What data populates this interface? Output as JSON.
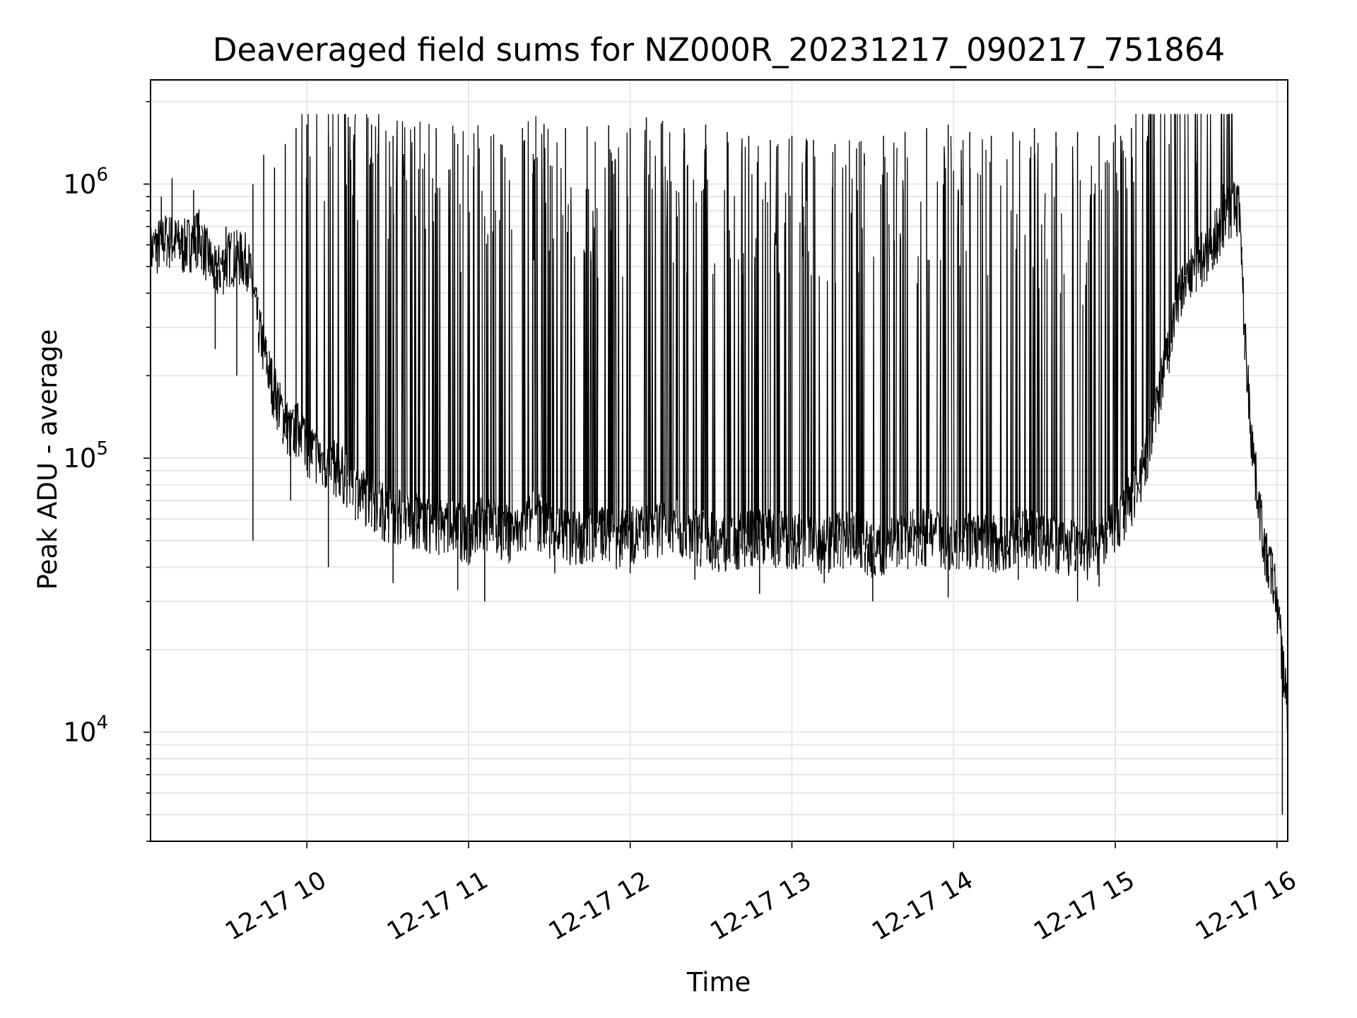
{
  "chart_data": {
    "type": "line",
    "title": "Deaveraged field sums for NZ000R_20231217_090217_751864",
    "xlabel": "Time",
    "ylabel": "Peak ADU - average",
    "yscale": "log",
    "ylim": [
      4000,
      2400000
    ],
    "xlim": [
      "2023-12-17 09:02",
      "2023-12-17 16:04"
    ],
    "grid": true,
    "line_color": "#000000",
    "grid_color": "#e6e6e6",
    "x_ticks": [
      "12-17 10",
      "12-17 11",
      "12-17 12",
      "12-17 13",
      "12-17 14",
      "12-17 15",
      "12-17 16"
    ],
    "y_ticks": [
      {
        "base": "10",
        "exp": "4"
      },
      {
        "base": "10",
        "exp": "5"
      },
      {
        "base": "10",
        "exp": "6"
      }
    ],
    "series": [
      {
        "x": [
          "09:02",
          "09:08",
          "09:14",
          "09:20",
          "09:26",
          "09:32",
          "09:38",
          "09:42",
          "09:46",
          "09:50",
          "09:54",
          "09:58",
          "10:00",
          "10:06",
          "10:12",
          "10:18",
          "10:24",
          "10:30",
          "10:36",
          "10:42",
          "10:48",
          "10:54",
          "11:00",
          "11:06",
          "11:12",
          "11:18",
          "11:24",
          "11:30",
          "11:36",
          "11:42",
          "11:48",
          "11:54",
          "12:00",
          "12:06",
          "12:12",
          "12:18",
          "12:24",
          "12:30",
          "12:36",
          "12:42",
          "12:48",
          "12:54",
          "13:00",
          "13:06",
          "13:12",
          "13:18",
          "13:24",
          "13:30",
          "13:36",
          "13:42",
          "13:48",
          "13:54",
          "14:00",
          "14:06",
          "14:12",
          "14:18",
          "14:24",
          "14:30",
          "14:36",
          "14:42",
          "14:48",
          "14:54",
          "15:00",
          "15:06",
          "15:12",
          "15:18",
          "15:24",
          "15:30",
          "15:36",
          "15:42",
          "15:46",
          "15:48",
          "15:50",
          "15:52",
          "15:54",
          "15:56",
          "15:58",
          "16:00",
          "16:02",
          "16:04"
        ],
        "y": [
          560000,
          620000,
          580000,
          640000,
          460000,
          540000,
          520000,
          300000,
          200000,
          150000,
          120000,
          130000,
          110000,
          95000,
          90000,
          75000,
          70000,
          62000,
          60000,
          58000,
          55000,
          56000,
          52000,
          58000,
          54000,
          52000,
          60000,
          55000,
          52000,
          50000,
          54000,
          50000,
          52000,
          54000,
          56000,
          55000,
          52000,
          50000,
          48000,
          50000,
          52000,
          51000,
          50000,
          50000,
          48000,
          50000,
          50000,
          45000,
          48000,
          50000,
          52000,
          50000,
          50000,
          50000,
          49000,
          48000,
          52000,
          50000,
          48000,
          48000,
          45000,
          48000,
          55000,
          70000,
          100000,
          200000,
          400000,
          500000,
          600000,
          800000,
          820000,
          280000,
          140000,
          85000,
          60000,
          42000,
          38000,
          30000,
          18000,
          12000
        ],
        "spikes": [
          {
            "x": "09:06",
            "y": 900000
          },
          {
            "x": "09:10",
            "y": 1050000
          },
          {
            "x": "09:18",
            "y": 950000
          },
          {
            "x": "09:30",
            "y": 700000
          },
          {
            "x": "09:40",
            "y": 1000000
          },
          {
            "x": "09:44",
            "y": 1280000
          },
          {
            "x": "09:48",
            "y": 1150000
          },
          {
            "x": "09:52",
            "y": 1400000
          },
          {
            "x": "09:56",
            "y": 1600000
          },
          {
            "x": "10:00",
            "y": 1650000
          },
          {
            "x": "10:08",
            "y": 1550000
          },
          {
            "x": "10:16",
            "y": 1620000
          },
          {
            "x": "10:24",
            "y": 1650000
          },
          {
            "x": "10:32",
            "y": 1500000
          },
          {
            "x": "10:40",
            "y": 1620000
          },
          {
            "x": "10:48",
            "y": 1600000
          },
          {
            "x": "10:56",
            "y": 1400000
          },
          {
            "x": "11:04",
            "y": 1350000
          },
          {
            "x": "11:12",
            "y": 1400000
          },
          {
            "x": "11:20",
            "y": 1600000
          },
          {
            "x": "11:28",
            "y": 1650000
          },
          {
            "x": "11:36",
            "y": 1600000
          },
          {
            "x": "11:44",
            "y": 1620000
          },
          {
            "x": "11:52",
            "y": 1640000
          },
          {
            "x": "12:00",
            "y": 1600000
          },
          {
            "x": "12:06",
            "y": 1750000
          },
          {
            "x": "12:12",
            "y": 1700000
          },
          {
            "x": "12:20",
            "y": 1600000
          },
          {
            "x": "12:28",
            "y": 1650000
          },
          {
            "x": "12:36",
            "y": 1550000
          },
          {
            "x": "12:44",
            "y": 1500000
          },
          {
            "x": "12:52",
            "y": 1450000
          },
          {
            "x": "13:00",
            "y": 1500000
          },
          {
            "x": "13:08",
            "y": 1450000
          },
          {
            "x": "13:16",
            "y": 1400000
          },
          {
            "x": "13:24",
            "y": 1350000
          },
          {
            "x": "13:34",
            "y": 1500000
          },
          {
            "x": "13:42",
            "y": 1550000
          },
          {
            "x": "13:50",
            "y": 1600000
          },
          {
            "x": "13:58",
            "y": 1650000
          },
          {
            "x": "14:06",
            "y": 1550000
          },
          {
            "x": "14:14",
            "y": 1500000
          },
          {
            "x": "14:22",
            "y": 1550000
          },
          {
            "x": "14:30",
            "y": 1600000
          },
          {
            "x": "14:38",
            "y": 1550000
          },
          {
            "x": "14:46",
            "y": 1550000
          },
          {
            "x": "14:54",
            "y": 1500000
          },
          {
            "x": "15:00",
            "y": 1650000
          },
          {
            "x": "15:06",
            "y": 1600000
          },
          {
            "x": "15:12",
            "y": 1500000
          },
          {
            "x": "15:20",
            "y": 1400000
          },
          {
            "x": "15:30",
            "y": 1200000
          },
          {
            "x": "15:40",
            "y": 1000000
          }
        ],
        "dips": [
          {
            "x": "09:26",
            "y": 250000
          },
          {
            "x": "09:34",
            "y": 200000
          },
          {
            "x": "09:40",
            "y": 50000
          },
          {
            "x": "09:54",
            "y": 70000
          },
          {
            "x": "10:08",
            "y": 40000
          },
          {
            "x": "10:32",
            "y": 35000
          },
          {
            "x": "10:56",
            "y": 33000
          },
          {
            "x": "11:06",
            "y": 30000
          },
          {
            "x": "11:32",
            "y": 38000
          },
          {
            "x": "12:00",
            "y": 38000
          },
          {
            "x": "12:24",
            "y": 36000
          },
          {
            "x": "12:48",
            "y": 32000
          },
          {
            "x": "13:12",
            "y": 35000
          },
          {
            "x": "13:30",
            "y": 30000
          },
          {
            "x": "13:58",
            "y": 31000
          },
          {
            "x": "14:24",
            "y": 36000
          },
          {
            "x": "14:46",
            "y": 30000
          },
          {
            "x": "14:54",
            "y": 34000
          },
          {
            "x": "16:02",
            "y": 5000
          }
        ]
      }
    ]
  }
}
